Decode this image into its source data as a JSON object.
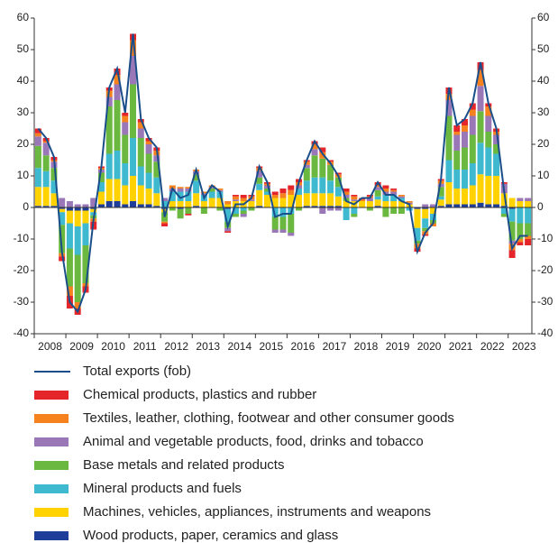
{
  "chart_data": {
    "type": "bar",
    "groups": [
      "2008",
      "2009",
      "2010",
      "2011",
      "2012",
      "2013",
      "2014",
      "2015",
      "2016",
      "2017",
      "2018",
      "2019",
      "2020",
      "2021",
      "2022",
      "2023"
    ],
    "ylim": [
      -40,
      60
    ],
    "yticks": [
      -40,
      -30,
      -20,
      -10,
      0,
      10,
      20,
      30,
      40,
      50,
      60
    ],
    "y2lim": [
      -40,
      60
    ],
    "y2ticks": [
      -40,
      -30,
      -20,
      -10,
      0,
      10,
      20,
      30,
      40,
      50,
      60
    ],
    "series": [
      {
        "name": "Total exports (fob)",
        "type": "line",
        "color": "#1a4e8a",
        "values": [
          25,
          22,
          16,
          -14,
          -30,
          -33,
          -26,
          -4,
          13,
          38,
          44,
          30,
          55,
          28,
          22,
          19,
          -3,
          6,
          3,
          4,
          12,
          3,
          7,
          5,
          -6,
          1,
          1,
          3,
          13,
          8,
          -3,
          -2,
          -2,
          8,
          15,
          21,
          17,
          14,
          10,
          2,
          1,
          3,
          3,
          8,
          4,
          4,
          2,
          1,
          -14,
          -8,
          -5,
          9,
          38,
          26,
          28,
          33,
          46,
          33,
          25,
          5,
          -13,
          -9,
          -9
        ]
      },
      {
        "name": "Chemical products, plastics and rubber",
        "type": "bar",
        "color": "#e4262b",
        "values": [
          1.5,
          1,
          1,
          -1.5,
          -4,
          -2,
          -2,
          -2.5,
          0.5,
          1,
          2,
          1,
          2,
          1,
          1,
          1,
          -1,
          0,
          0,
          -0.5,
          0,
          0,
          0,
          0,
          -0.5,
          0.5,
          1,
          0.5,
          0.5,
          0.5,
          1,
          1.5,
          1.5,
          1,
          0.5,
          1,
          1.5,
          0.5,
          0.5,
          1,
          0.5,
          0.5,
          0.5,
          1,
          1,
          0.5,
          0,
          0,
          -1,
          -0.5,
          0,
          0.5,
          2,
          2,
          2,
          2,
          2.5,
          1,
          1,
          0.5,
          -2.5,
          -1,
          -2
        ]
      },
      {
        "name": "Textiles, leather, clothing, footwear and other consumer goods",
        "type": "bar",
        "color": "#f5821f",
        "values": [
          1,
          0.5,
          0.5,
          -1,
          -3,
          -2,
          -1,
          -1,
          0.5,
          2,
          3,
          2,
          5,
          2,
          1,
          1.5,
          -0.5,
          1,
          0.5,
          0.5,
          0.5,
          0.5,
          0.5,
          0.5,
          1,
          1,
          1,
          1,
          1,
          0.5,
          1,
          1.5,
          1.5,
          1,
          1,
          1.5,
          2,
          1,
          1,
          1,
          1,
          0.5,
          0.5,
          0.5,
          1,
          0.5,
          0.5,
          0.5,
          -1.5,
          -1,
          -1,
          1,
          2,
          1,
          2,
          2,
          5,
          3,
          1,
          0,
          -2,
          -1,
          -1
        ]
      },
      {
        "name": "Animal and vegetable products, food, drinks and tobacco",
        "type": "bar",
        "color": "#9a78b8",
        "values": [
          3,
          4,
          2,
          3,
          2,
          1,
          1,
          3,
          1,
          3,
          5,
          4,
          9,
          3,
          3,
          2,
          1,
          1,
          1,
          1,
          1,
          0.5,
          0.5,
          0.5,
          -1,
          0.5,
          -1,
          0.5,
          2,
          1,
          -1,
          -1,
          -1,
          1,
          1,
          2,
          -2,
          -1,
          -1,
          1,
          0.5,
          0,
          1,
          1,
          1,
          1,
          0.5,
          0.5,
          0,
          1,
          1,
          1,
          5,
          5,
          5,
          6,
          8,
          5,
          3,
          3,
          -1,
          1,
          1
        ]
      },
      {
        "name": "Base metals and related products",
        "type": "bar",
        "color": "#6ab83f",
        "values": [
          7,
          5,
          4,
          -9,
          -12,
          -15,
          -12,
          -1,
          3,
          15,
          16,
          9,
          17,
          9,
          6,
          5,
          -3,
          -1,
          -3,
          -2,
          2,
          -2,
          1,
          -1,
          -2,
          -1,
          -1,
          -1,
          2,
          1,
          -4,
          -4,
          -6,
          -1,
          4,
          7,
          6,
          5,
          3,
          1,
          -1,
          0,
          -1,
          2,
          -3,
          -2,
          -2,
          0,
          -1,
          -1,
          -1,
          3,
          14,
          6,
          7,
          9,
          10,
          5,
          3,
          -1,
          -6,
          -5,
          -4
        ]
      },
      {
        "name": "Mineral products and fuels",
        "type": "bar",
        "color": "#3fb9d0",
        "values": [
          6,
          5,
          4,
          -4,
          -8,
          -9,
          -7,
          -1,
          3,
          8,
          9,
          7,
          12,
          6,
          5,
          5,
          2,
          3,
          3,
          3,
          4,
          2,
          2,
          2,
          -4,
          -2,
          -1,
          0,
          2,
          1,
          -3,
          -3,
          -2,
          2,
          4,
          5,
          5,
          4,
          3,
          -4,
          -2,
          0,
          0,
          1,
          2,
          2,
          1,
          -1,
          -4,
          -3,
          -2,
          1,
          7,
          6,
          6,
          7,
          10,
          9,
          7,
          -2,
          -4,
          -5,
          -5
        ]
      },
      {
        "name": "Machines, vehicles, appliances, instruments and weapons",
        "type": "bar",
        "color": "#ffd200",
        "values": [
          6,
          6,
          4,
          -1,
          -4,
          -5,
          -4,
          -1,
          4,
          7,
          7,
          6,
          8,
          6,
          5,
          4,
          -1,
          2,
          2,
          2,
          4,
          2,
          3,
          3,
          1,
          2,
          2,
          2,
          5,
          4,
          3,
          3,
          4,
          4,
          4,
          4,
          4,
          4,
          3,
          2,
          2,
          2,
          2,
          2,
          2,
          2,
          2,
          1,
          -6,
          -3,
          -2,
          2,
          7,
          5,
          5,
          6,
          9,
          9,
          9,
          4,
          3,
          2,
          2
        ]
      },
      {
        "name": "Wood products, paper, ceramics and glass",
        "type": "bar",
        "color": "#1f3e99",
        "values": [
          0.5,
          0.5,
          0.5,
          -0.5,
          -1,
          -1,
          -1,
          -0.5,
          1,
          2,
          2,
          1,
          2,
          1,
          1,
          0.5,
          -0.5,
          0,
          -0.5,
          0,
          0.5,
          0,
          0,
          0,
          -0.5,
          0,
          0,
          0,
          0.5,
          0,
          0,
          0,
          0,
          0,
          0.5,
          0.5,
          0.5,
          0.5,
          0.5,
          0,
          0,
          0,
          0,
          0.5,
          0,
          0,
          0,
          0,
          -0.5,
          -0.5,
          0,
          0.5,
          1,
          1,
          1,
          1,
          1.5,
          1,
          1,
          0.5,
          -0.5,
          0,
          0
        ]
      }
    ]
  }
}
